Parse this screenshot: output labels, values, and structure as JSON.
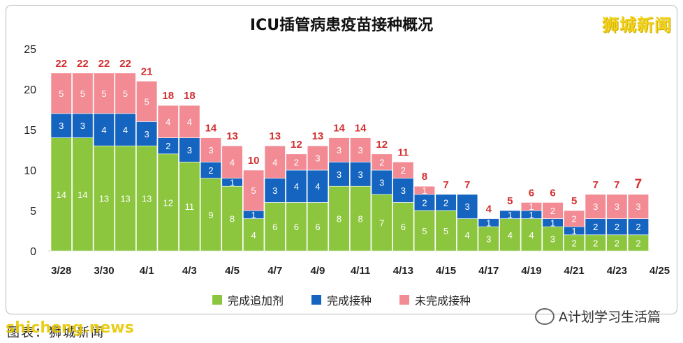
{
  "title": "ICU插管病患疫苗接种概况",
  "brand": "狮城新闻",
  "footer": {
    "source": "图表：狮城新闻",
    "watermark": "shicheng.news",
    "account": "A计划学习生活篇"
  },
  "colors": {
    "booster": "#8cc63f",
    "full": "#1565c0",
    "unvaccinated": "#f28b94",
    "total_label": "#d32f2f"
  },
  "chart_data": {
    "type": "bar",
    "stacked": true,
    "title": "ICU插管病患疫苗接种概况",
    "categories": [
      "3/28",
      "3/29",
      "3/30",
      "3/31",
      "4/1",
      "4/2",
      "4/3",
      "4/4",
      "4/5",
      "4/6",
      "4/7",
      "4/8",
      "4/9",
      "4/10",
      "4/11",
      "4/12",
      "4/13",
      "4/14",
      "4/15",
      "4/16",
      "4/17",
      "4/18",
      "4/19",
      "4/20",
      "4/21",
      "4/22",
      "4/23",
      "4/24"
    ],
    "x_tick_labels": [
      "3/28",
      "3/30",
      "4/1",
      "4/3",
      "4/5",
      "4/7",
      "4/9",
      "4/11",
      "4/13",
      "4/15",
      "4/17",
      "4/19",
      "4/21",
      "4/23",
      "4/25"
    ],
    "ylim": [
      0,
      25
    ],
    "yticks": [
      0,
      5,
      10,
      15,
      20,
      25
    ],
    "series": [
      {
        "name": "完成追加剂",
        "values": [
          14,
          14,
          13,
          13,
          13,
          12,
          11,
          9,
          8,
          4,
          6,
          6,
          6,
          8,
          8,
          7,
          6,
          5,
          5,
          4,
          3,
          4,
          4,
          3,
          2,
          2,
          2,
          2
        ]
      },
      {
        "name": "完成接种",
        "values": [
          3,
          3,
          4,
          4,
          3,
          2,
          3,
          2,
          1,
          1,
          3,
          4,
          4,
          3,
          3,
          3,
          3,
          2,
          2,
          3,
          1,
          1,
          1,
          1,
          1,
          2,
          2,
          2
        ]
      },
      {
        "name": "未完成接种",
        "values": [
          5,
          5,
          5,
          5,
          5,
          4,
          4,
          3,
          4,
          5,
          4,
          2,
          3,
          3,
          3,
          2,
          2,
          1,
          0,
          0,
          0,
          0,
          1,
          2,
          2,
          3,
          3,
          3
        ]
      }
    ],
    "totals": [
      22,
      22,
      22,
      22,
      21,
      18,
      18,
      14,
      13,
      10,
      13,
      12,
      13,
      14,
      14,
      12,
      11,
      8,
      7,
      7,
      4,
      5,
      6,
      6,
      5,
      7,
      7,
      7
    ],
    "legend_position": "bottom",
    "grid": false
  }
}
